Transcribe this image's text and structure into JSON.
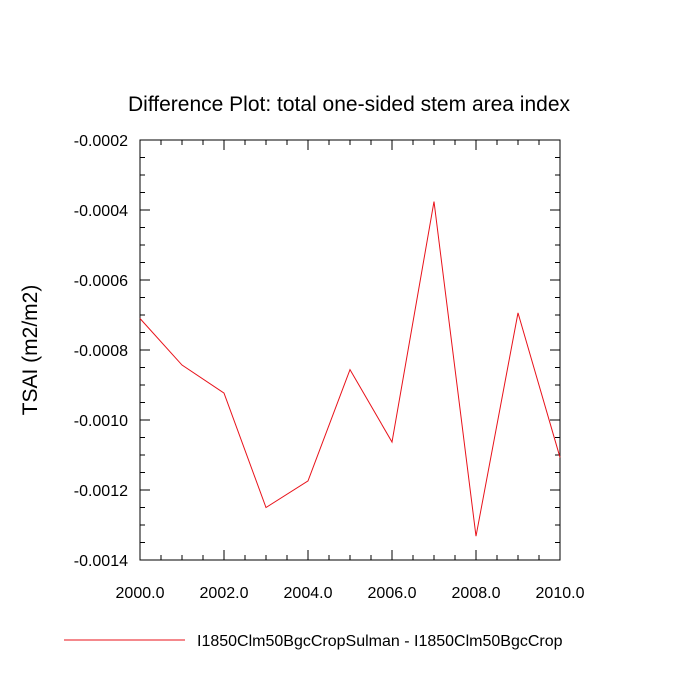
{
  "chart_data": {
    "type": "line",
    "title": "Difference Plot: total one-sided stem area index",
    "xlabel": "",
    "ylabel": "TSAI  (m2/m2)",
    "xlim": [
      2000,
      2010
    ],
    "ylim": [
      -0.0014,
      -0.0002
    ],
    "x_ticks": [
      2000,
      2002,
      2004,
      2006,
      2008,
      2010
    ],
    "x_tick_labels": [
      "2000.0",
      "2002.0",
      "2004.0",
      "2006.0",
      "2008.0",
      "2010.0"
    ],
    "y_ticks": [
      -0.0002,
      -0.0004,
      -0.0006,
      -0.0008,
      -0.001,
      -0.0012,
      -0.0014
    ],
    "y_tick_labels": [
      "-0.0002",
      "-0.0004",
      "-0.0006",
      "-0.0008",
      "-0.0010",
      "-0.0012",
      "-0.0014"
    ],
    "grid": false,
    "legend_position": "bottom",
    "series": [
      {
        "name": "I1850Clm50BgcCropSulman - I1850Clm50BgcCrop",
        "color": "#e8121a",
        "x": [
          2000,
          2001,
          2002,
          2003,
          2004,
          2005,
          2006,
          2007,
          2008,
          2009,
          2010
        ],
        "values": [
          -0.00071,
          -0.000843,
          -0.000923,
          -0.00125,
          -0.001174,
          -0.000856,
          -0.001063,
          -0.000376,
          -0.001332,
          -0.000694,
          -0.001107
        ]
      }
    ]
  }
}
